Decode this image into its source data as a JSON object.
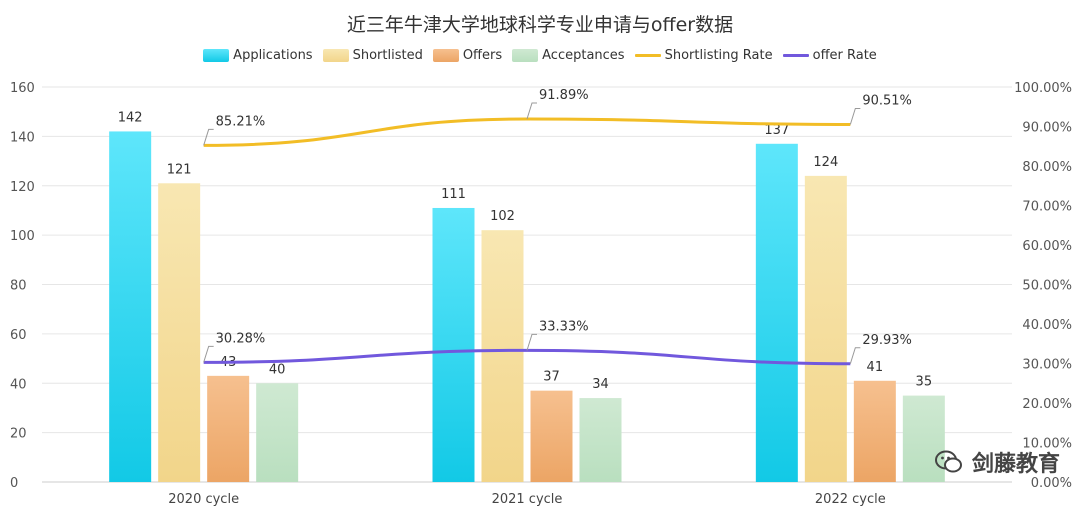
{
  "chart_data": {
    "type": "bar",
    "title": "近三年牛津大学地球科学专业申请与offer数据",
    "categories": [
      "2020 cycle",
      "2021 cycle",
      "2022 cycle"
    ],
    "series": [
      {
        "name": "Applications",
        "type": "bar",
        "axis": "left",
        "values": [
          142,
          111,
          137
        ],
        "color_top": "#5ee6fb",
        "color_bottom": "#12c9e6"
      },
      {
        "name": "Shortlisted",
        "type": "bar",
        "axis": "left",
        "values": [
          121,
          102,
          124
        ],
        "color_top": "#f8e7b2",
        "color_bottom": "#f2d58a"
      },
      {
        "name": "Offers",
        "type": "bar",
        "axis": "left",
        "values": [
          43,
          37,
          41
        ],
        "color_top": "#f6c08f",
        "color_bottom": "#eca565"
      },
      {
        "name": "Acceptances",
        "type": "bar",
        "axis": "left",
        "values": [
          40,
          34,
          35
        ],
        "color_top": "#cfe9d2",
        "color_bottom": "#b9dfbf"
      },
      {
        "name": "Shortlisting Rate",
        "type": "line",
        "axis": "right",
        "values": [
          85.21,
          91.89,
          90.51
        ],
        "labels": [
          "85.21%",
          "91.89%",
          "90.51%"
        ],
        "color": "#f2bd26"
      },
      {
        "name": "offer Rate",
        "type": "line",
        "axis": "right",
        "values": [
          30.28,
          33.33,
          29.93
        ],
        "labels": [
          "30.28%",
          "33.33%",
          "29.93%"
        ],
        "color": "#7158dd"
      }
    ],
    "y_left": {
      "min": 0,
      "max": 160,
      "ticks": [
        "0",
        "20",
        "40",
        "60",
        "80",
        "100",
        "120",
        "140",
        "160"
      ]
    },
    "y_right": {
      "min": 0,
      "max": 100,
      "ticks": [
        "0.00%",
        "10.00%",
        "20.00%",
        "30.00%",
        "40.00%",
        "50.00%",
        "60.00%",
        "70.00%",
        "80.00%",
        "90.00%",
        "100.00%"
      ]
    },
    "grid": true,
    "legend": "top-center"
  },
  "watermark": {
    "label": "剑藤教育",
    "icon": "wechat-icon"
  }
}
